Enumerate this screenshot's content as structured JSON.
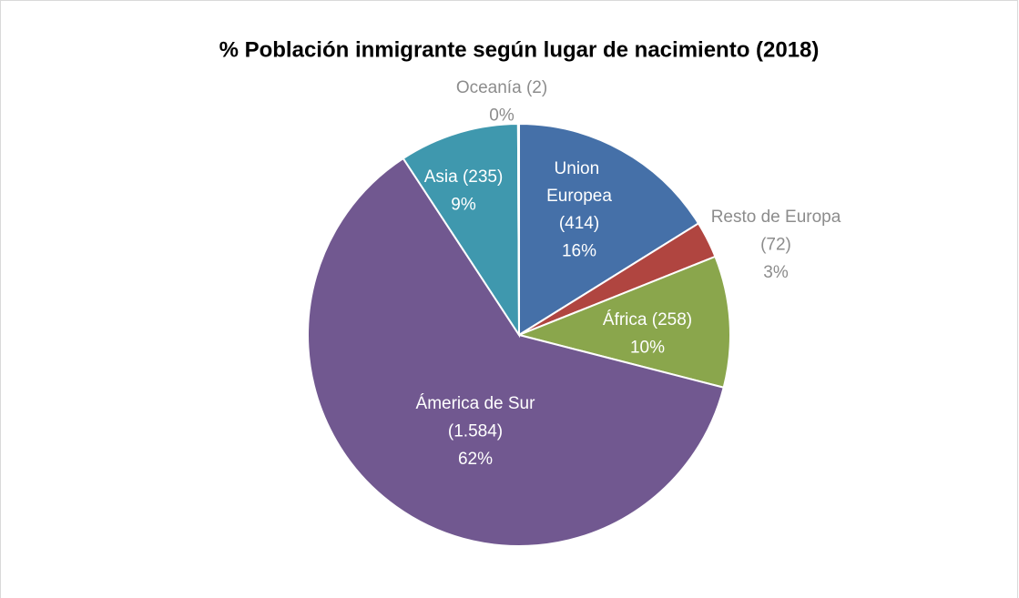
{
  "chart_data": {
    "type": "pie",
    "title": "% Población inmigrante según lugar de nacimiento (2018)",
    "categories": [
      "Union Europea",
      "Resto de Europa",
      "África",
      "Ámerica de Sur",
      "Asia",
      "Oceanía"
    ],
    "values": [
      414,
      72,
      258,
      1584,
      235,
      2
    ],
    "value_labels": [
      "(414)",
      "(72)",
      "(258)",
      "(1.584)",
      "(235)",
      "(2)"
    ],
    "percentages": [
      "16%",
      "3%",
      "10%",
      "62%",
      "9%",
      "0%"
    ],
    "colors": [
      "#4570a8",
      "#b04540",
      "#8aa64c",
      "#715890",
      "#3f98ae",
      "#c0c0c0"
    ]
  }
}
